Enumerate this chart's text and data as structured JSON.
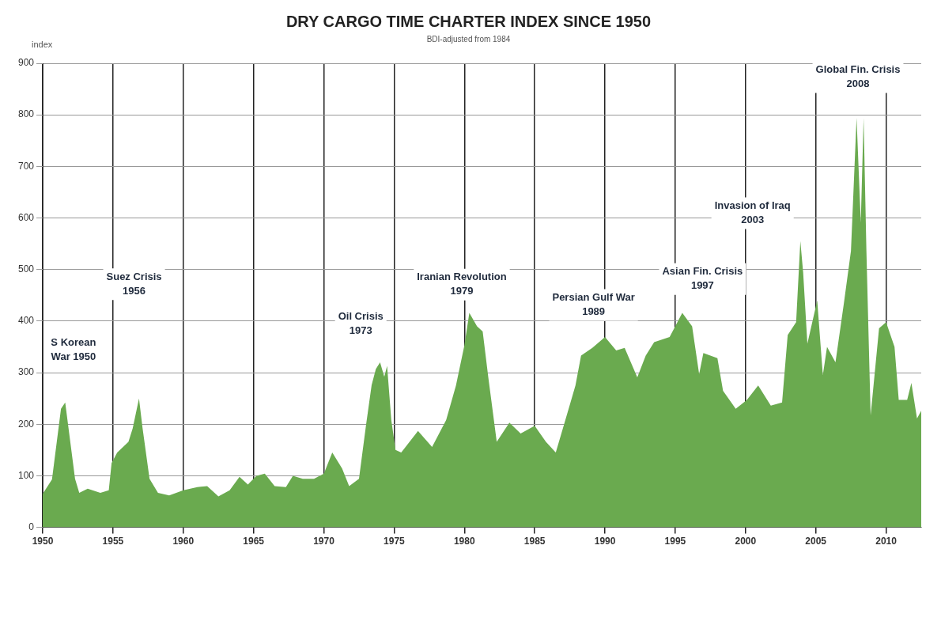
{
  "chart_data": {
    "type": "area",
    "title": "DRY CARGO TIME CHARTER INDEX SINCE 1950",
    "subtitle": "BDI-adjusted from 1984",
    "ylabel": "index",
    "x": [
      1950.0,
      1950.66,
      1951.3,
      1951.6,
      1952.3,
      1952.6,
      1953.2,
      1954.1,
      1954.7,
      1954.9,
      1955.3,
      1956.1,
      1956.4,
      1956.85,
      1957.1,
      1957.6,
      1958.2,
      1959.0,
      1960.0,
      1961.0,
      1961.7,
      1962.5,
      1963.3,
      1964.0,
      1964.6,
      1965.2,
      1965.8,
      1966.5,
      1967.3,
      1967.8,
      1968.5,
      1969.3,
      1970.0,
      1970.6,
      1971.3,
      1971.8,
      1972.5,
      1973.0,
      1973.4,
      1973.7,
      1974.0,
      1974.3,
      1974.5,
      1974.8,
      1975.1,
      1975.5,
      1976.7,
      1977.7,
      1978.7,
      1979.4,
      1980.0,
      1980.35,
      1980.9,
      1981.3,
      1981.7,
      1982.3,
      1983.2,
      1984.0,
      1985.0,
      1985.8,
      1986.5,
      1987.3,
      1987.9,
      1988.3,
      1989.1,
      1990.0,
      1990.8,
      1991.4,
      1992.3,
      1992.9,
      1993.5,
      1994.6,
      1995.5,
      1996.2,
      1996.7,
      1997.0,
      1998.0,
      1998.4,
      1999.3,
      2000.1,
      2000.9,
      2001.8,
      2002.6,
      2003.0,
      2003.6,
      2003.9,
      2004.1,
      2004.4,
      2005.1,
      2005.5,
      2005.8,
      2006.4,
      2007.0,
      2007.5,
      2007.9,
      2008.2,
      2008.4,
      2008.6,
      2008.9,
      2009.5,
      2010.0,
      2010.6,
      2010.9,
      2011.5,
      2011.8,
      2012.2,
      2012.5
    ],
    "values": [
      65,
      93,
      230,
      242,
      94,
      67,
      75,
      67,
      72,
      125,
      145,
      166,
      192,
      250,
      193,
      94,
      67,
      62,
      72,
      78,
      80,
      60,
      72,
      98,
      83,
      100,
      104,
      80,
      78,
      100,
      94,
      94,
      104,
      145,
      114,
      80,
      94,
      198,
      276,
      307,
      320,
      292,
      313,
      208,
      150,
      145,
      187,
      156,
      208,
      275,
      353,
      416,
      390,
      380,
      291,
      166,
      203,
      182,
      197,
      166,
      145,
      219,
      275,
      333,
      348,
      369,
      343,
      348,
      291,
      333,
      359,
      369,
      416,
      390,
      297,
      338,
      328,
      265,
      230,
      247,
      275,
      236,
      242,
      373,
      398,
      555,
      494,
      356,
      440,
      295,
      350,
      320,
      435,
      536,
      794,
      591,
      794,
      536,
      217,
      386,
      398,
      350,
      247,
      247,
      280,
      211,
      226
    ],
    "color": "#6aaa4f",
    "xlim": [
      1950,
      2012.5
    ],
    "xticks": [
      1950,
      1955,
      1960,
      1965,
      1970,
      1975,
      1980,
      1985,
      1990,
      1995,
      2000,
      2005,
      2010
    ],
    "ylim": [
      0,
      900
    ],
    "yticks": [
      0,
      100,
      200,
      300,
      400,
      500,
      600,
      700,
      800,
      900
    ],
    "grid": true,
    "legend": false,
    "annotations": [
      "S Korean\nWar 1950",
      "Suez Crisis\n1956",
      "Oil Crisis\n1973",
      "Iranian Revolution\n1979",
      "Persian Gulf War\n1989",
      "Asian Fin. Crisis\n1997",
      "Invasion of Iraq\n2003",
      "Global Fin. Crisis\n2008"
    ]
  }
}
